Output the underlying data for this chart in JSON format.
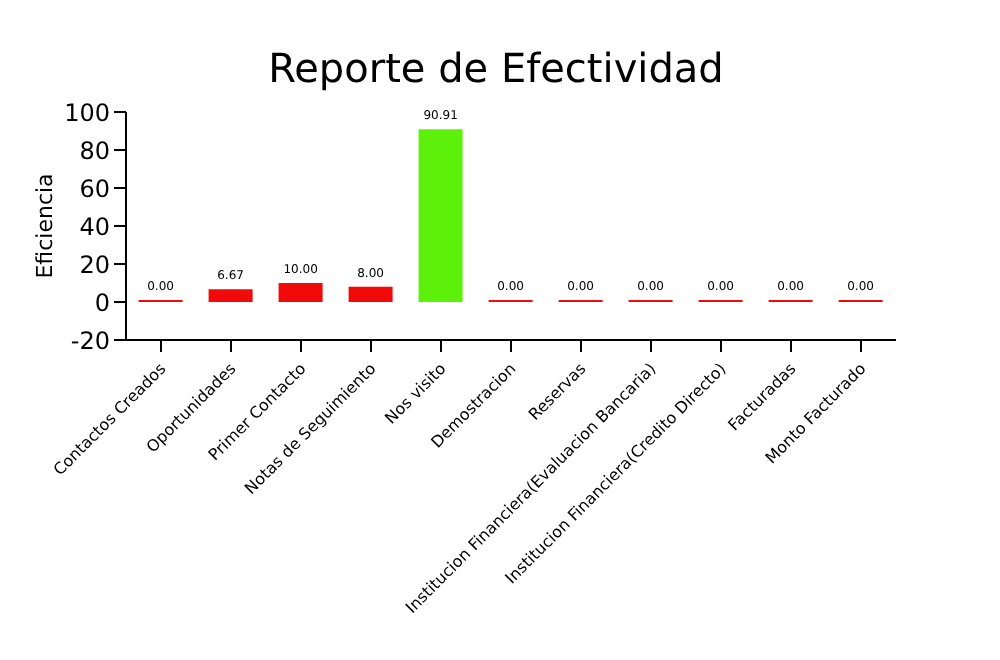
{
  "chart_data": {
    "type": "bar",
    "title": "Reporte de Efectividad",
    "ylabel": "Eficiencia",
    "categories": [
      "Contactos Creados",
      "Oportunidades",
      "Primer Contacto",
      "Notas de Seguimiento",
      "Nos visito",
      "Demostracion",
      "Reservas",
      "Institucion Financiera(Evaluacion Bancaria)",
      "Institucion Financiera(Credito Directo)",
      "Facturadas",
      "Monto Facturado"
    ],
    "values": [
      0,
      6.67,
      10,
      8,
      90.91,
      0,
      0,
      0,
      0,
      0,
      0
    ],
    "colors": [
      "#f00a0a",
      "#f00a0a",
      "#f00a0a",
      "#f00a0a",
      "#5cf00a",
      "#f00a0a",
      "#f00a0a",
      "#f00a0a",
      "#f00a0a",
      "#f00a0a",
      "#f00a0a"
    ],
    "value_labels": [
      "0.00",
      "6.67",
      "10.00",
      "8.00",
      "90.91",
      "0.00",
      "0.00",
      "0.00",
      "0.00",
      "0.00",
      "0.00"
    ],
    "ylim": [
      -20,
      100
    ],
    "yticks": [
      -20,
      0,
      20,
      40,
      60,
      80,
      100
    ],
    "grid": false,
    "legend": false
  }
}
